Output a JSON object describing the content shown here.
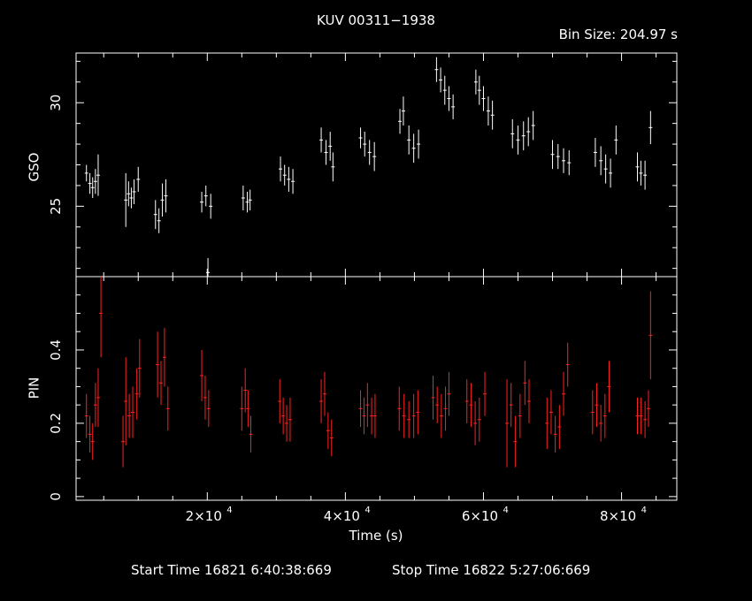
{
  "header": {
    "title": "KUV 00311−1938",
    "bin_size": "Bin Size: 204.97 s"
  },
  "footer": {
    "start": "Start Time 16821  6:40:38:669",
    "stop": "Stop Time 16822  5:27:06:669"
  },
  "colors": {
    "background": "#000000",
    "gso": "#ffffff",
    "pin": "#ff2020",
    "axes": "#ffffff"
  },
  "chart_data": [
    {
      "type": "scatter",
      "panel": "top",
      "ylabel": "GSO",
      "xlim": [
        1000,
        88000
      ],
      "ylim": [
        21.6,
        32.4
      ],
      "ytick_labels": [
        "25",
        "30"
      ],
      "yticks": [
        25,
        30
      ],
      "series": [
        {
          "error_bars": true,
          "points": [
            [
              2500,
              26.6,
              0.4
            ],
            [
              3000,
              26.1,
              0.5
            ],
            [
              3400,
              25.9,
              0.5
            ],
            [
              3800,
              26.2,
              0.6
            ],
            [
              4200,
              26.5,
              1.0
            ],
            [
              8200,
              25.3,
              1.3
            ],
            [
              8600,
              25.6,
              0.6
            ],
            [
              9000,
              25.4,
              0.5
            ],
            [
              9400,
              25.7,
              0.6
            ],
            [
              10000,
              26.3,
              0.6
            ],
            [
              12500,
              24.6,
              0.7
            ],
            [
              13000,
              24.3,
              0.6
            ],
            [
              13500,
              25.3,
              0.8
            ],
            [
              14000,
              25.5,
              0.8
            ],
            [
              19200,
              25.2,
              0.5
            ],
            [
              19800,
              25.5,
              0.5
            ],
            [
              20100,
              21.8,
              0.7
            ],
            [
              20500,
              25.0,
              0.6
            ],
            [
              25200,
              25.4,
              0.6
            ],
            [
              25800,
              25.2,
              0.5
            ],
            [
              26200,
              25.3,
              0.5
            ],
            [
              30600,
              26.8,
              0.6
            ],
            [
              31200,
              26.5,
              0.5
            ],
            [
              31800,
              26.3,
              0.6
            ],
            [
              32400,
              26.2,
              0.6
            ],
            [
              36500,
              28.2,
              0.6
            ],
            [
              37200,
              27.6,
              0.6
            ],
            [
              37800,
              27.9,
              0.7
            ],
            [
              38200,
              26.9,
              0.7
            ],
            [
              42200,
              28.3,
              0.5
            ],
            [
              42800,
              28.0,
              0.6
            ],
            [
              43500,
              27.6,
              0.6
            ],
            [
              44200,
              27.4,
              0.7
            ],
            [
              47900,
              29.1,
              0.6
            ],
            [
              48400,
              29.6,
              0.7
            ],
            [
              49200,
              28.2,
              0.7
            ],
            [
              49900,
              27.8,
              0.7
            ],
            [
              50600,
              28.0,
              0.7
            ],
            [
              53200,
              31.6,
              0.6
            ],
            [
              53800,
              31.1,
              0.6
            ],
            [
              54400,
              30.6,
              0.7
            ],
            [
              55000,
              30.2,
              0.6
            ],
            [
              55600,
              29.8,
              0.6
            ],
            [
              58900,
              31.0,
              0.6
            ],
            [
              59400,
              30.6,
              0.7
            ],
            [
              60000,
              30.2,
              0.6
            ],
            [
              60700,
              29.6,
              0.7
            ],
            [
              61300,
              29.4,
              0.7
            ],
            [
              64200,
              28.5,
              0.7
            ],
            [
              65000,
              28.2,
              0.7
            ],
            [
              65800,
              28.4,
              0.7
            ],
            [
              66500,
              28.6,
              0.7
            ],
            [
              67200,
              28.9,
              0.7
            ],
            [
              70000,
              27.5,
              0.7
            ],
            [
              70800,
              27.4,
              0.6
            ],
            [
              71600,
              27.2,
              0.6
            ],
            [
              72400,
              27.1,
              0.6
            ],
            [
              76200,
              27.6,
              0.7
            ],
            [
              77000,
              27.2,
              0.7
            ],
            [
              77700,
              26.8,
              0.7
            ],
            [
              78400,
              26.6,
              0.7
            ],
            [
              79200,
              28.2,
              0.7
            ],
            [
              82300,
              26.9,
              0.7
            ],
            [
              82800,
              26.6,
              0.6
            ],
            [
              83400,
              26.5,
              0.7
            ],
            [
              84200,
              28.8,
              0.8
            ]
          ]
        }
      ]
    },
    {
      "type": "scatter",
      "panel": "bottom",
      "ylabel": "PIN",
      "xlabel": "Time (s)",
      "xlim": [
        1000,
        88000
      ],
      "ylim": [
        -0.01,
        0.6
      ],
      "xticks": [
        20000,
        40000,
        60000,
        80000
      ],
      "xtick_labels": [
        "2×10",
        "4×10",
        "6×10",
        "8×10"
      ],
      "xtick_exponent": "4",
      "yticks": [
        0,
        0.2,
        0.4
      ],
      "ytick_labels": [
        "0",
        "0.2",
        "0.4"
      ],
      "series": [
        {
          "error_bars": true,
          "points": [
            [
              2500,
              0.22,
              0.06
            ],
            [
              3000,
              0.17,
              0.05
            ],
            [
              3400,
              0.15,
              0.05
            ],
            [
              3800,
              0.25,
              0.06
            ],
            [
              4200,
              0.27,
              0.08
            ],
            [
              4600,
              0.5,
              0.12
            ],
            [
              7800,
              0.15,
              0.07
            ],
            [
              8200,
              0.26,
              0.12
            ],
            [
              8700,
              0.22,
              0.06
            ],
            [
              9200,
              0.23,
              0.07
            ],
            [
              9800,
              0.28,
              0.07
            ],
            [
              10200,
              0.35,
              0.08
            ],
            [
              12800,
              0.36,
              0.09
            ],
            [
              13300,
              0.31,
              0.06
            ],
            [
              13800,
              0.38,
              0.08
            ],
            [
              14300,
              0.24,
              0.06
            ],
            [
              19200,
              0.33,
              0.07
            ],
            [
              19700,
              0.27,
              0.06
            ],
            [
              20200,
              0.24,
              0.05
            ],
            [
              25000,
              0.24,
              0.06
            ],
            [
              25500,
              0.29,
              0.06
            ],
            [
              25900,
              0.24,
              0.05
            ],
            [
              26300,
              0.17,
              0.05
            ],
            [
              30500,
              0.26,
              0.06
            ],
            [
              31000,
              0.22,
              0.05
            ],
            [
              31500,
              0.2,
              0.05
            ],
            [
              32000,
              0.21,
              0.06
            ],
            [
              36500,
              0.26,
              0.06
            ],
            [
              37000,
              0.28,
              0.06
            ],
            [
              37500,
              0.18,
              0.05
            ],
            [
              38000,
              0.16,
              0.05
            ],
            [
              42200,
              0.24,
              0.05
            ],
            [
              42700,
              0.22,
              0.05
            ],
            [
              43200,
              0.25,
              0.06
            ],
            [
              43800,
              0.22,
              0.05
            ],
            [
              44300,
              0.22,
              0.06
            ],
            [
              47800,
              0.24,
              0.06
            ],
            [
              48500,
              0.22,
              0.06
            ],
            [
              49200,
              0.21,
              0.05
            ],
            [
              49900,
              0.22,
              0.06
            ],
            [
              50500,
              0.23,
              0.06
            ],
            [
              52700,
              0.27,
              0.06
            ],
            [
              53300,
              0.25,
              0.05
            ],
            [
              53900,
              0.22,
              0.06
            ],
            [
              54500,
              0.24,
              0.06
            ],
            [
              55000,
              0.28,
              0.06
            ],
            [
              57600,
              0.26,
              0.06
            ],
            [
              58200,
              0.25,
              0.06
            ],
            [
              58800,
              0.2,
              0.06
            ],
            [
              59400,
              0.21,
              0.06
            ],
            [
              60200,
              0.28,
              0.06
            ],
            [
              63400,
              0.2,
              0.12
            ],
            [
              64000,
              0.25,
              0.06
            ],
            [
              64600,
              0.15,
              0.07
            ],
            [
              65300,
              0.22,
              0.06
            ],
            [
              66000,
              0.31,
              0.06
            ],
            [
              66600,
              0.26,
              0.06
            ],
            [
              69200,
              0.2,
              0.07
            ],
            [
              69800,
              0.23,
              0.06
            ],
            [
              70400,
              0.17,
              0.05
            ],
            [
              71000,
              0.19,
              0.06
            ],
            [
              71600,
              0.28,
              0.06
            ],
            [
              72200,
              0.36,
              0.06
            ],
            [
              75800,
              0.23,
              0.06
            ],
            [
              76400,
              0.25,
              0.06
            ],
            [
              77000,
              0.2,
              0.05
            ],
            [
              77600,
              0.22,
              0.06
            ],
            [
              78200,
              0.3,
              0.07
            ],
            [
              82300,
              0.22,
              0.05
            ],
            [
              82800,
              0.22,
              0.05
            ],
            [
              83400,
              0.21,
              0.05
            ],
            [
              83900,
              0.24,
              0.05
            ],
            [
              84200,
              0.44,
              0.12
            ]
          ]
        }
      ]
    }
  ]
}
